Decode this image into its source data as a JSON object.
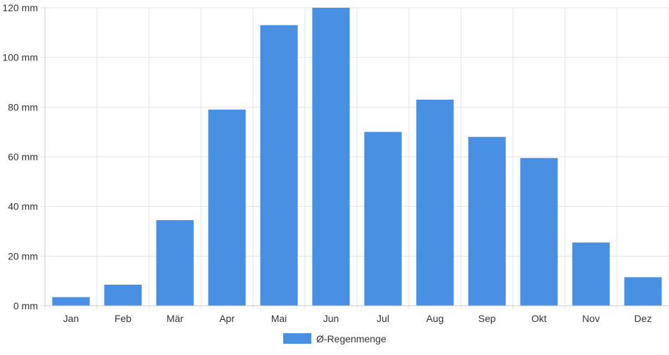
{
  "chart_data": {
    "type": "bar",
    "categories": [
      "Jan",
      "Feb",
      "Mär",
      "Apr",
      "Mai",
      "Jun",
      "Jul",
      "Aug",
      "Sep",
      "Okt",
      "Nov",
      "Dez"
    ],
    "series": [
      {
        "name": "Ø-Regenmenge",
        "values": [
          3.5,
          8.5,
          34.5,
          79,
          113,
          120,
          70,
          83,
          68,
          59.5,
          25.5,
          11.5
        ]
      }
    ],
    "y_unit": "mm",
    "yticks": [
      "0 mm",
      "20 mm",
      "40 mm",
      "60 mm",
      "80 mm",
      "100 mm",
      "120 mm"
    ],
    "ylim": [
      0,
      120
    ],
    "grid": true,
    "legend_position": "bottom",
    "colors": {
      "bar": "#4a90e2",
      "grid": "#e6e6e6",
      "axis": "#cccccc",
      "text": "#333333"
    }
  }
}
